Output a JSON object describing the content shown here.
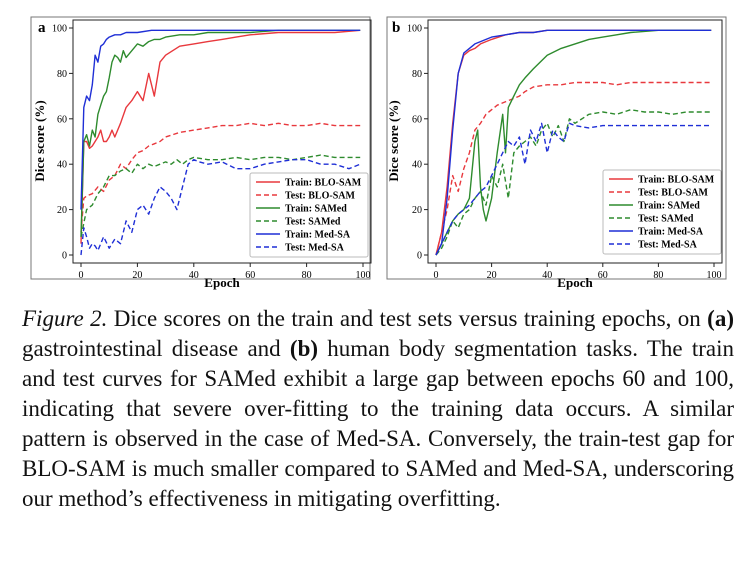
{
  "chart_data": [
    {
      "type": "line",
      "panel_label": "a",
      "title": "",
      "xlabel": "Epoch",
      "ylabel": "Dice score (%)",
      "xlim": [
        0,
        100
      ],
      "ylim": [
        0,
        100
      ],
      "xticks": [
        0,
        20,
        40,
        60,
        80,
        100
      ],
      "yticks": [
        0,
        20,
        40,
        60,
        80,
        100
      ],
      "grid": false,
      "legend": "bottom-right",
      "series": [
        {
          "name": "Train: BLO-SAM",
          "color": "#e8383d",
          "dash": "solid",
          "x": [
            0,
            1,
            2,
            3,
            4,
            5,
            6,
            7,
            8,
            9,
            10,
            11,
            12,
            14,
            16,
            18,
            20,
            22,
            24,
            26,
            28,
            30,
            35,
            40,
            45,
            50,
            55,
            60,
            70,
            80,
            90,
            99
          ],
          "y": [
            5,
            50,
            50,
            47,
            48,
            50,
            52,
            55,
            50,
            50,
            52,
            55,
            52,
            58,
            65,
            68,
            72,
            68,
            80,
            70,
            85,
            88,
            92,
            93,
            94,
            95,
            96,
            97,
            98,
            98,
            98,
            99
          ]
        },
        {
          "name": "Test: BLO-SAM",
          "color": "#e8383d",
          "dash": "dashed",
          "x": [
            0,
            1,
            2,
            4,
            6,
            8,
            10,
            12,
            14,
            16,
            18,
            20,
            22,
            24,
            26,
            28,
            30,
            35,
            40,
            45,
            50,
            55,
            60,
            65,
            70,
            75,
            80,
            85,
            90,
            95,
            99
          ],
          "y": [
            10,
            25,
            26,
            27,
            30,
            28,
            33,
            35,
            40,
            38,
            42,
            45,
            46,
            48,
            49,
            50,
            52,
            54,
            55,
            56,
            57,
            57,
            58,
            57,
            58,
            57,
            57,
            58,
            57,
            57,
            57
          ]
        },
        {
          "name": "Train: SAMed",
          "color": "#2e8b2e",
          "dash": "solid",
          "x": [
            0,
            1,
            2,
            3,
            4,
            5,
            6,
            7,
            8,
            9,
            10,
            11,
            12,
            13,
            14,
            15,
            16,
            18,
            20,
            22,
            24,
            26,
            28,
            30,
            35,
            40,
            45,
            50,
            60,
            70,
            80,
            90,
            99
          ],
          "y": [
            8,
            50,
            53,
            48,
            55,
            52,
            62,
            66,
            70,
            72,
            78,
            85,
            88,
            87,
            85,
            90,
            87,
            90,
            93,
            92,
            94,
            95,
            95,
            96,
            97,
            97,
            98,
            98,
            98,
            99,
            99,
            99,
            99
          ]
        },
        {
          "name": "Test: SAMed",
          "color": "#2e8b2e",
          "dash": "dashed",
          "x": [
            0,
            2,
            4,
            6,
            8,
            10,
            12,
            14,
            16,
            18,
            20,
            22,
            24,
            26,
            28,
            30,
            32,
            34,
            36,
            38,
            40,
            45,
            50,
            55,
            60,
            65,
            70,
            75,
            80,
            85,
            90,
            95,
            99
          ],
          "y": [
            8,
            20,
            22,
            27,
            30,
            35,
            35,
            37,
            38,
            36,
            40,
            38,
            40,
            39,
            40,
            41,
            40,
            42,
            40,
            42,
            43,
            42,
            42,
            43,
            42,
            43,
            43,
            42,
            43,
            44,
            43,
            43,
            43
          ]
        },
        {
          "name": "Train: Med-SA",
          "color": "#1f2fd6",
          "dash": "solid",
          "x": [
            0,
            1,
            2,
            3,
            4,
            5,
            6,
            7,
            8,
            9,
            10,
            12,
            14,
            16,
            18,
            20,
            25,
            30,
            35,
            40,
            50,
            60,
            70,
            80,
            90,
            99
          ],
          "y": [
            20,
            65,
            70,
            68,
            75,
            88,
            85,
            92,
            93,
            95,
            96,
            97,
            97,
            98,
            98,
            98,
            99,
            99,
            99,
            99,
            99,
            99,
            99,
            99,
            99,
            99
          ]
        },
        {
          "name": "Test: Med-SA",
          "color": "#1f2fd6",
          "dash": "dashed",
          "x": [
            0,
            1,
            2,
            3,
            4,
            5,
            6,
            8,
            10,
            12,
            14,
            16,
            18,
            20,
            22,
            24,
            26,
            28,
            30,
            32,
            34,
            36,
            38,
            40,
            42,
            45,
            50,
            55,
            60,
            65,
            70,
            75,
            80,
            85,
            90,
            95,
            99
          ],
          "y": [
            0,
            12,
            8,
            3,
            5,
            4,
            2,
            8,
            3,
            7,
            5,
            15,
            10,
            20,
            22,
            18,
            25,
            30,
            28,
            25,
            20,
            30,
            40,
            42,
            41,
            40,
            41,
            38,
            38,
            40,
            41,
            42,
            42,
            40,
            40,
            38,
            40
          ]
        }
      ]
    },
    {
      "type": "line",
      "panel_label": "b",
      "title": "",
      "xlabel": "Epoch",
      "ylabel": "Dice score (%)",
      "xlim": [
        0,
        100
      ],
      "ylim": [
        0,
        100
      ],
      "xticks": [
        0,
        20,
        40,
        60,
        80,
        100
      ],
      "yticks": [
        0,
        20,
        40,
        60,
        80,
        100
      ],
      "grid": false,
      "legend": "bottom-right",
      "series": [
        {
          "name": "Train: BLO-SAM",
          "color": "#e8383d",
          "dash": "solid",
          "x": [
            0,
            2,
            4,
            6,
            8,
            10,
            12,
            14,
            16,
            18,
            20,
            25,
            30,
            35,
            40,
            50,
            60,
            70,
            80,
            90,
            99
          ],
          "y": [
            0,
            10,
            30,
            58,
            80,
            88,
            90,
            91,
            93,
            94,
            95,
            97,
            98,
            98,
            99,
            99,
            99,
            99,
            99,
            99,
            99
          ]
        },
        {
          "name": "Test: BLO-SAM",
          "color": "#e8383d",
          "dash": "dashed",
          "x": [
            0,
            2,
            4,
            6,
            8,
            10,
            12,
            14,
            16,
            18,
            20,
            22,
            24,
            26,
            28,
            30,
            32,
            35,
            40,
            45,
            50,
            55,
            60,
            65,
            70,
            75,
            80,
            85,
            90,
            95,
            99
          ],
          "y": [
            0,
            10,
            20,
            35,
            28,
            38,
            45,
            55,
            58,
            62,
            64,
            66,
            67,
            68,
            69,
            70,
            72,
            74,
            75,
            75,
            76,
            76,
            76,
            75,
            76,
            76,
            76,
            76,
            76,
            76,
            76
          ]
        },
        {
          "name": "Train: SAMed",
          "color": "#2e8b2e",
          "dash": "solid",
          "x": [
            0,
            2,
            4,
            6,
            8,
            10,
            12,
            14,
            15,
            16,
            17,
            18,
            20,
            22,
            24,
            25,
            26,
            28,
            30,
            32,
            35,
            40,
            45,
            50,
            55,
            60,
            65,
            70,
            80,
            90,
            99
          ],
          "y": [
            0,
            5,
            10,
            15,
            18,
            20,
            25,
            50,
            55,
            30,
            20,
            15,
            25,
            45,
            62,
            45,
            65,
            70,
            75,
            78,
            82,
            88,
            91,
            93,
            95,
            96,
            97,
            98,
            99,
            99,
            99
          ]
        },
        {
          "name": "Test: SAMed",
          "color": "#2e8b2e",
          "dash": "dashed",
          "x": [
            0,
            2,
            4,
            6,
            8,
            10,
            12,
            14,
            16,
            18,
            20,
            22,
            24,
            26,
            28,
            30,
            32,
            34,
            36,
            38,
            40,
            42,
            44,
            46,
            48,
            50,
            55,
            60,
            65,
            70,
            75,
            80,
            85,
            90,
            95,
            99
          ],
          "y": [
            0,
            3,
            8,
            15,
            12,
            18,
            20,
            25,
            28,
            22,
            35,
            30,
            40,
            25,
            45,
            48,
            50,
            52,
            48,
            55,
            58,
            52,
            57,
            50,
            60,
            58,
            62,
            63,
            62,
            64,
            63,
            63,
            62,
            63,
            63,
            63
          ]
        },
        {
          "name": "Train: Med-SA",
          "color": "#1f2fd6",
          "dash": "solid",
          "x": [
            0,
            2,
            4,
            6,
            8,
            10,
            12,
            14,
            16,
            18,
            20,
            25,
            30,
            35,
            40,
            50,
            60,
            70,
            80,
            90,
            99
          ],
          "y": [
            0,
            5,
            25,
            55,
            80,
            89,
            91,
            93,
            94,
            95,
            96,
            97,
            98,
            98,
            99,
            99,
            99,
            99,
            99,
            99,
            99
          ]
        },
        {
          "name": "Test: Med-SA",
          "color": "#1f2fd6",
          "dash": "dashed",
          "x": [
            0,
            2,
            4,
            6,
            8,
            10,
            12,
            14,
            16,
            18,
            20,
            22,
            24,
            26,
            28,
            30,
            32,
            34,
            36,
            38,
            40,
            42,
            44,
            46,
            48,
            50,
            55,
            60,
            65,
            70,
            75,
            80,
            85,
            90,
            95,
            99
          ],
          "y": [
            0,
            5,
            10,
            15,
            18,
            20,
            22,
            25,
            28,
            30,
            35,
            40,
            45,
            50,
            48,
            52,
            40,
            55,
            50,
            58,
            45,
            55,
            52,
            50,
            58,
            57,
            56,
            57,
            57,
            57,
            57,
            57,
            57,
            57,
            57,
            57
          ]
        }
      ]
    }
  ],
  "caption": {
    "label": "Figure 2.",
    "t1": " Dice scores on the train and test sets versus training epochs, on ",
    "a": "(a)",
    "t2": " gastrointestinal disease and ",
    "b": "(b)",
    "t3": " human body segmentation tasks.  The train and test curves for SAMed exhibit a large gap between epochs 60 and 100, indicating that severe over-fitting to the training data occurs.  A similar pattern is observed in the case of Med-SA. Conversely, the train-test gap for BLO-SAM is much smaller compared to SAMed and Med-SA, underscoring our method’s effectiveness in mitigating overfitting."
  }
}
